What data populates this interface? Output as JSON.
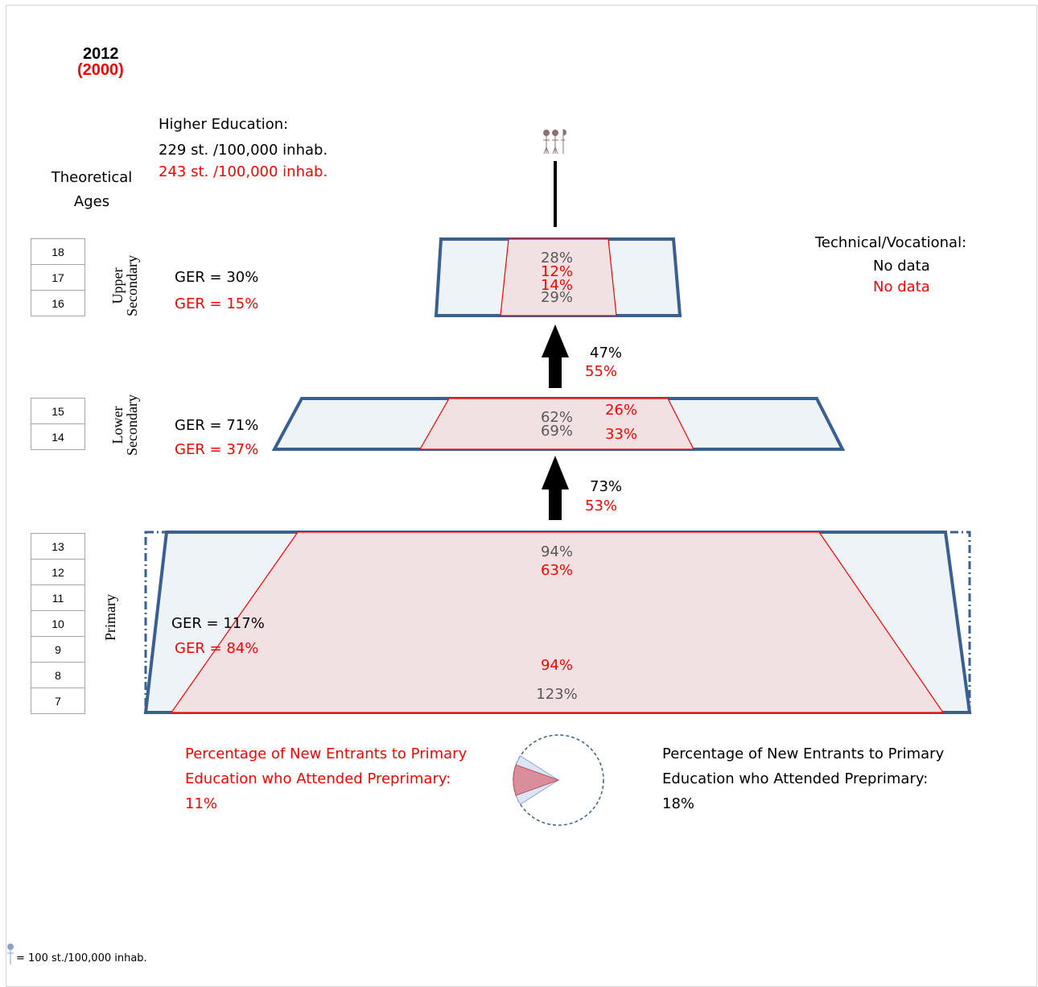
{
  "header": {
    "year_current": "2012",
    "year_previous": "(2000)"
  },
  "higher_education": {
    "title": "Higher Education:",
    "current": "229 st. /100,000  inhab.",
    "previous": "243 st. /100,000  inhab."
  },
  "theoretical_ages_label": "Theoretical Ages",
  "technical_vocational": {
    "title": "Technical/Vocational:",
    "current": "No data",
    "previous": "No data"
  },
  "levels": {
    "upper_secondary": {
      "label": "Upper Secondary",
      "ages": [
        "18",
        "17",
        "16"
      ],
      "ger_current": "GER = 30%",
      "ger_previous": "GER = 15%",
      "top_current": "28%",
      "top_previous": "12%",
      "bottom_previous": "14%",
      "bottom_current": "29%"
    },
    "lower_secondary": {
      "label": "Lower Secondary",
      "ages": [
        "15",
        "14"
      ],
      "ger_current": "GER = 71%",
      "ger_previous": "GER = 37%",
      "top_current": "62%",
      "bottom_current": "69%",
      "top_previous": "26%",
      "bottom_previous": "33%"
    },
    "primary": {
      "label": "Primary",
      "ages": [
        "13",
        "12",
        "11",
        "10",
        "9",
        "8",
        "7"
      ],
      "ger_current": "GER = 117%",
      "ger_previous": "GER = 84%",
      "top_current": "94%",
      "top_previous": "63%",
      "bottom_previous": "94%",
      "bottom_current": "123%"
    }
  },
  "transitions": {
    "lower_to_upper": {
      "current": "47%",
      "previous": "55%"
    },
    "primary_to_lower": {
      "current": "73%",
      "previous": "53%"
    }
  },
  "preprimary": {
    "previous_text": "Percentage of New Entrants to Primary Education who Attended Preprimary: 11%",
    "current_text": "Percentage of New Entrants to Primary Education who Attended Preprimary: 18%",
    "previous_value": 11,
    "current_value": 18
  },
  "footnote": "= 100 st./100,000 inhab.",
  "colors": {
    "current": "#000000",
    "previous": "#ff0000",
    "trapezoid_border": "#3a5f91",
    "trapezoid_fill": "#eef3f8",
    "inner_fill": "#f2e1e3"
  }
}
